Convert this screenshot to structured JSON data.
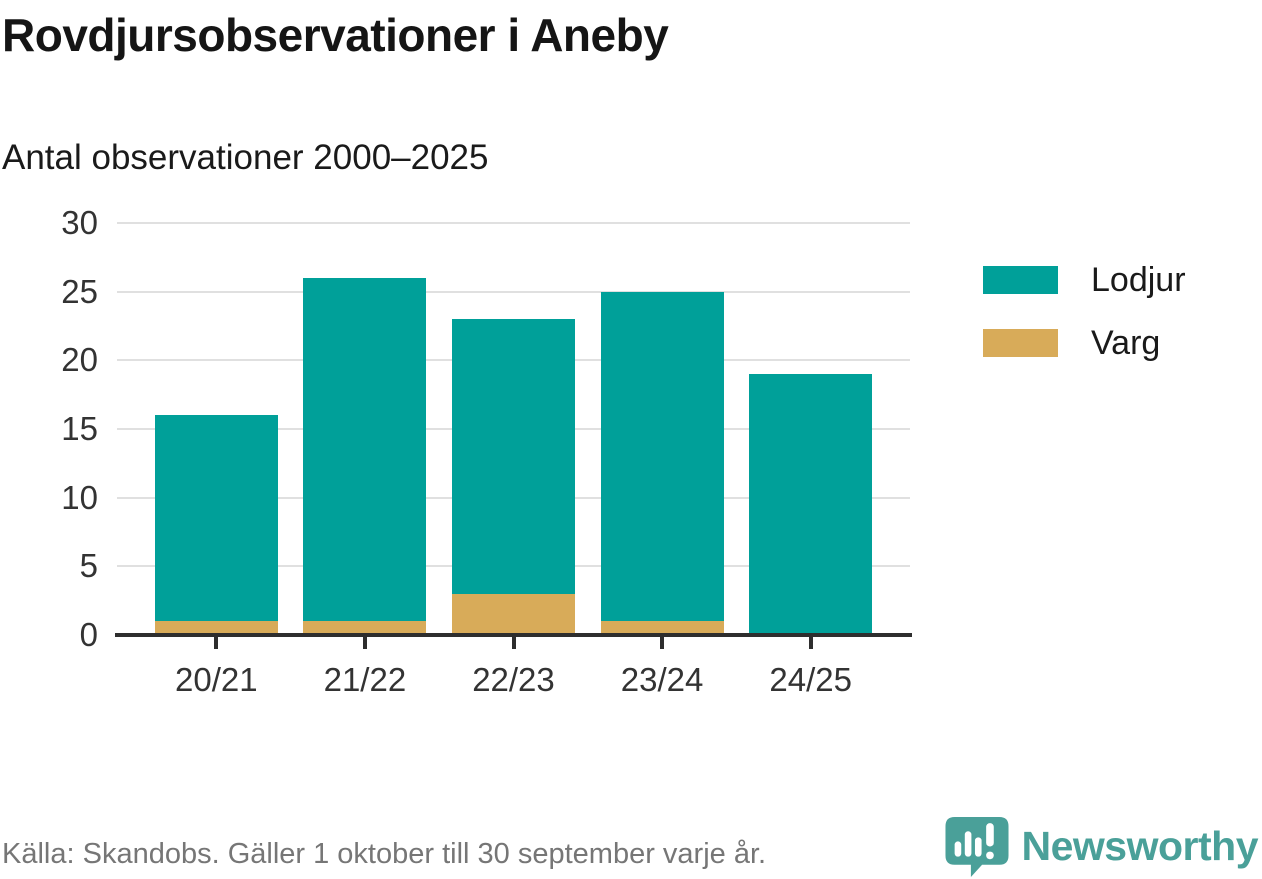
{
  "title": "Rovdjursobservationer i Aneby",
  "subtitle": "Antal observationer 2000–2025",
  "legend": {
    "items": [
      {
        "label": "Lodjur",
        "color": "#00a099"
      },
      {
        "label": "Varg",
        "color": "#d8ab59"
      }
    ]
  },
  "footer": {
    "source": "Källa: Skandobs. Gäller 1 oktober till 30 september varje år.",
    "brand": "Newsworthy"
  },
  "colors": {
    "lodjur": "#00a099",
    "varg": "#d8ab59",
    "axis": "#2e2e2e",
    "grid": "#e0e0e0",
    "tick_label": "#333333",
    "footer_text": "#767676",
    "brand": "#4aa099"
  },
  "chart_data": {
    "type": "bar",
    "stacked": true,
    "title": "Rovdjursobservationer i Aneby",
    "subtitle": "Antal observationer 2000–2025",
    "categories": [
      "20/21",
      "21/22",
      "22/23",
      "23/24",
      "24/25"
    ],
    "series": [
      {
        "name": "Lodjur",
        "color": "#00a099",
        "values": [
          15,
          25,
          20,
          24,
          19
        ]
      },
      {
        "name": "Varg",
        "color": "#d8ab59",
        "values": [
          1,
          1,
          3,
          1,
          0
        ]
      }
    ],
    "stack_order": [
      "Varg",
      "Lodjur"
    ],
    "totals": [
      16,
      26,
      23,
      25,
      19
    ],
    "xlabel": "",
    "ylabel": "",
    "ylim": [
      0,
      30
    ],
    "yticks": [
      0,
      5,
      10,
      15,
      20,
      25,
      30
    ],
    "grid": true,
    "legend_position": "right"
  }
}
